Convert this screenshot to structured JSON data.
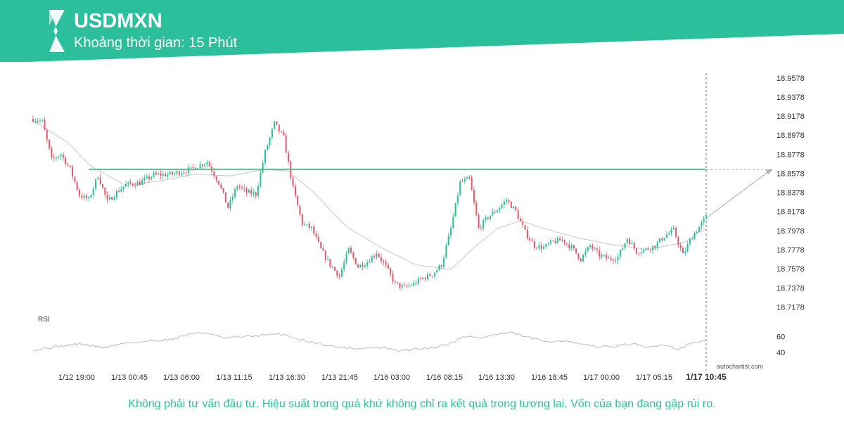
{
  "header": {
    "symbol": "USDMXN",
    "interval_label": "Khoảng thời gian: 15 Phút"
  },
  "footer": {
    "disclaimer": "Không phải tư vấn đầu tư. Hiệu suất trong quá khứ không chỉ ra kết quả trong tương lai. Vốn của bạn đang gặp rủi ro.",
    "watermark": "autochartist.com"
  },
  "colors": {
    "brand": "#2bbf9b",
    "bull": "#2bbf9b",
    "bear": "#e25b6b",
    "level_line": "#5cb98f",
    "moving_average": "#c8c8c8",
    "rsi_line": "#bbbbbb"
  },
  "chart_data": [
    {
      "type": "candlestick",
      "title": "USDMXN",
      "y_ticks": [
        "18.9578",
        "18.9378",
        "18.9178",
        "18.8978",
        "18.8778",
        "18.8578",
        "18.8378",
        "18.8178",
        "18.7978",
        "18.7778",
        "18.7578",
        "18.7378",
        "18.7178"
      ],
      "ylim": [
        18.7078,
        18.9628
      ],
      "x_ticks": [
        "1/12 19:00",
        "1/13 00:45",
        "1/13 06:00",
        "1/13 11:15",
        "1/13 16:30",
        "1/13 21:45",
        "1/16 03:00",
        "1/16 08:15",
        "1/16 13:30",
        "1/16 18:45",
        "1/17 00:00",
        "1/17 05:15",
        "1/17 10:45"
      ],
      "current_time_label": "1/17 10:45",
      "grid": false,
      "price_path": [
        {
          "i": 0,
          "price": 18.915
        },
        {
          "i": 4,
          "price": 18.912
        },
        {
          "i": 8,
          "price": 18.872
        },
        {
          "i": 12,
          "price": 18.878
        },
        {
          "i": 16,
          "price": 18.862
        },
        {
          "i": 20,
          "price": 18.835
        },
        {
          "i": 24,
          "price": 18.83
        },
        {
          "i": 28,
          "price": 18.856
        },
        {
          "i": 32,
          "price": 18.828
        },
        {
          "i": 36,
          "price": 18.838
        },
        {
          "i": 40,
          "price": 18.846
        },
        {
          "i": 46,
          "price": 18.848
        },
        {
          "i": 52,
          "price": 18.856
        },
        {
          "i": 60,
          "price": 18.857
        },
        {
          "i": 68,
          "price": 18.862
        },
        {
          "i": 75,
          "price": 18.87
        },
        {
          "i": 80,
          "price": 18.848
        },
        {
          "i": 84,
          "price": 18.822
        },
        {
          "i": 88,
          "price": 18.845
        },
        {
          "i": 92,
          "price": 18.838
        },
        {
          "i": 96,
          "price": 18.836
        },
        {
          "i": 100,
          "price": 18.88
        },
        {
          "i": 104,
          "price": 18.91
        },
        {
          "i": 108,
          "price": 18.895
        },
        {
          "i": 112,
          "price": 18.842
        },
        {
          "i": 116,
          "price": 18.805
        },
        {
          "i": 120,
          "price": 18.8
        },
        {
          "i": 124,
          "price": 18.778
        },
        {
          "i": 128,
          "price": 18.762
        },
        {
          "i": 132,
          "price": 18.75
        },
        {
          "i": 136,
          "price": 18.778
        },
        {
          "i": 140,
          "price": 18.76
        },
        {
          "i": 144,
          "price": 18.765
        },
        {
          "i": 148,
          "price": 18.775
        },
        {
          "i": 152,
          "price": 18.76
        },
        {
          "i": 156,
          "price": 18.742
        },
        {
          "i": 160,
          "price": 18.738
        },
        {
          "i": 164,
          "price": 18.742
        },
        {
          "i": 168,
          "price": 18.748
        },
        {
          "i": 172,
          "price": 18.752
        },
        {
          "i": 176,
          "price": 18.762
        },
        {
          "i": 180,
          "price": 18.8
        },
        {
          "i": 184,
          "price": 18.848
        },
        {
          "i": 188,
          "price": 18.852
        },
        {
          "i": 192,
          "price": 18.8
        },
        {
          "i": 196,
          "price": 18.812
        },
        {
          "i": 200,
          "price": 18.82
        },
        {
          "i": 204,
          "price": 18.83
        },
        {
          "i": 208,
          "price": 18.818
        },
        {
          "i": 212,
          "price": 18.796
        },
        {
          "i": 216,
          "price": 18.782
        },
        {
          "i": 220,
          "price": 18.78
        },
        {
          "i": 224,
          "price": 18.786
        },
        {
          "i": 228,
          "price": 18.788
        },
        {
          "i": 232,
          "price": 18.78
        },
        {
          "i": 236,
          "price": 18.768
        },
        {
          "i": 240,
          "price": 18.782
        },
        {
          "i": 244,
          "price": 18.772
        },
        {
          "i": 248,
          "price": 18.768
        },
        {
          "i": 252,
          "price": 18.77
        },
        {
          "i": 256,
          "price": 18.79
        },
        {
          "i": 260,
          "price": 18.776
        },
        {
          "i": 264,
          "price": 18.778
        },
        {
          "i": 268,
          "price": 18.782
        },
        {
          "i": 272,
          "price": 18.792
        },
        {
          "i": 276,
          "price": 18.798
        },
        {
          "i": 280,
          "price": 18.772
        },
        {
          "i": 284,
          "price": 18.792
        },
        {
          "i": 288,
          "price": 18.805
        },
        {
          "i": 290,
          "price": 18.812
        }
      ],
      "moving_average_path": [
        {
          "i": 0,
          "price": 18.913
        },
        {
          "i": 15,
          "price": 18.89
        },
        {
          "i": 25,
          "price": 18.865
        },
        {
          "i": 40,
          "price": 18.845
        },
        {
          "i": 55,
          "price": 18.85
        },
        {
          "i": 70,
          "price": 18.857
        },
        {
          "i": 85,
          "price": 18.855
        },
        {
          "i": 100,
          "price": 18.862
        },
        {
          "i": 110,
          "price": 18.86
        },
        {
          "i": 120,
          "price": 18.84
        },
        {
          "i": 135,
          "price": 18.802
        },
        {
          "i": 150,
          "price": 18.78
        },
        {
          "i": 165,
          "price": 18.762
        },
        {
          "i": 180,
          "price": 18.757
        },
        {
          "i": 190,
          "price": 18.78
        },
        {
          "i": 200,
          "price": 18.8
        },
        {
          "i": 210,
          "price": 18.808
        },
        {
          "i": 220,
          "price": 18.8
        },
        {
          "i": 235,
          "price": 18.79
        },
        {
          "i": 250,
          "price": 18.783
        },
        {
          "i": 265,
          "price": 18.778
        },
        {
          "i": 280,
          "price": 18.785
        },
        {
          "i": 290,
          "price": 18.8
        }
      ],
      "candle_count": 291,
      "resistance_level": {
        "price": 18.862,
        "start_i": 24,
        "end": "right-edge"
      },
      "projection": {
        "from_price": 18.812,
        "to_price": 18.862
      },
      "rsi": {
        "label": "RSI",
        "y_ticks": [
          "60",
          "40"
        ],
        "ylim": [
          30,
          75
        ],
        "path": [
          {
            "i": 0,
            "value": 43
          },
          {
            "i": 10,
            "value": 47
          },
          {
            "i": 20,
            "value": 51
          },
          {
            "i": 30,
            "value": 46
          },
          {
            "i": 40,
            "value": 52
          },
          {
            "i": 50,
            "value": 54
          },
          {
            "i": 60,
            "value": 57
          },
          {
            "i": 68,
            "value": 64
          },
          {
            "i": 75,
            "value": 65
          },
          {
            "i": 82,
            "value": 58
          },
          {
            "i": 90,
            "value": 60
          },
          {
            "i": 100,
            "value": 62
          },
          {
            "i": 108,
            "value": 63
          },
          {
            "i": 115,
            "value": 56
          },
          {
            "i": 122,
            "value": 52
          },
          {
            "i": 130,
            "value": 47
          },
          {
            "i": 140,
            "value": 45
          },
          {
            "i": 150,
            "value": 46
          },
          {
            "i": 158,
            "value": 42
          },
          {
            "i": 165,
            "value": 44
          },
          {
            "i": 172,
            "value": 46
          },
          {
            "i": 180,
            "value": 52
          },
          {
            "i": 186,
            "value": 61
          },
          {
            "i": 192,
            "value": 58
          },
          {
            "i": 198,
            "value": 62
          },
          {
            "i": 206,
            "value": 65
          },
          {
            "i": 212,
            "value": 60
          },
          {
            "i": 220,
            "value": 54
          },
          {
            "i": 228,
            "value": 55
          },
          {
            "i": 236,
            "value": 50
          },
          {
            "i": 244,
            "value": 47
          },
          {
            "i": 252,
            "value": 48
          },
          {
            "i": 258,
            "value": 51
          },
          {
            "i": 264,
            "value": 46
          },
          {
            "i": 272,
            "value": 50
          },
          {
            "i": 278,
            "value": 44
          },
          {
            "i": 284,
            "value": 52
          },
          {
            "i": 290,
            "value": 55
          }
        ]
      }
    }
  ]
}
